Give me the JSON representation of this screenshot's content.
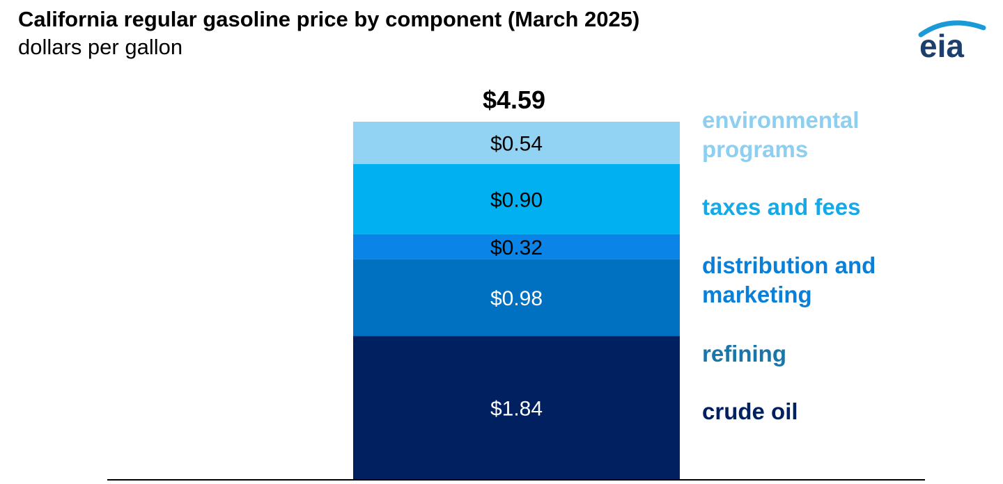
{
  "title": "California regular gasoline price by component (March 2025)",
  "subtitle": "dollars per gallon",
  "logo": {
    "text": "eia",
    "icon": "eia-logo-icon",
    "color": "#1d3f6e",
    "arc_color": "#1a9ad6"
  },
  "chart_data": {
    "type": "bar",
    "stacked": true,
    "categories": [
      ""
    ],
    "total_label": "$4.59",
    "total": 4.59,
    "series": [
      {
        "name": "crude oil",
        "value": 1.84,
        "label": "$1.84",
        "color": "#002060",
        "label_color": "#ffffff",
        "legend_lines": [
          "crude oil"
        ]
      },
      {
        "name": "refining",
        "value": 0.98,
        "label": "$0.98",
        "color": "#0070c0",
        "label_color": "#ffffff",
        "legend_lines": [
          "refining"
        ],
        "legend_color": "#1a75a8"
      },
      {
        "name": "distribution and marketing",
        "value": 0.32,
        "label": "$0.32",
        "color": "#0a84e6",
        "label_color": "#000000",
        "legend_lines": [
          "distribution and",
          "marketing"
        ],
        "legend_color": "#0a7fd8"
      },
      {
        "name": "taxes and fees",
        "value": 0.9,
        "label": "$0.90",
        "color": "#00b0f0",
        "label_color": "#000000",
        "legend_lines": [
          "taxes and fees"
        ],
        "legend_color": "#16a9e6"
      },
      {
        "name": "environmental programs",
        "value": 0.54,
        "label": "$0.54",
        "color": "#92d2f2",
        "label_color": "#000000",
        "legend_lines": [
          "environmental",
          "programs"
        ],
        "legend_color": "#8ccff0"
      }
    ],
    "legend_placement": "right",
    "grid": false
  }
}
